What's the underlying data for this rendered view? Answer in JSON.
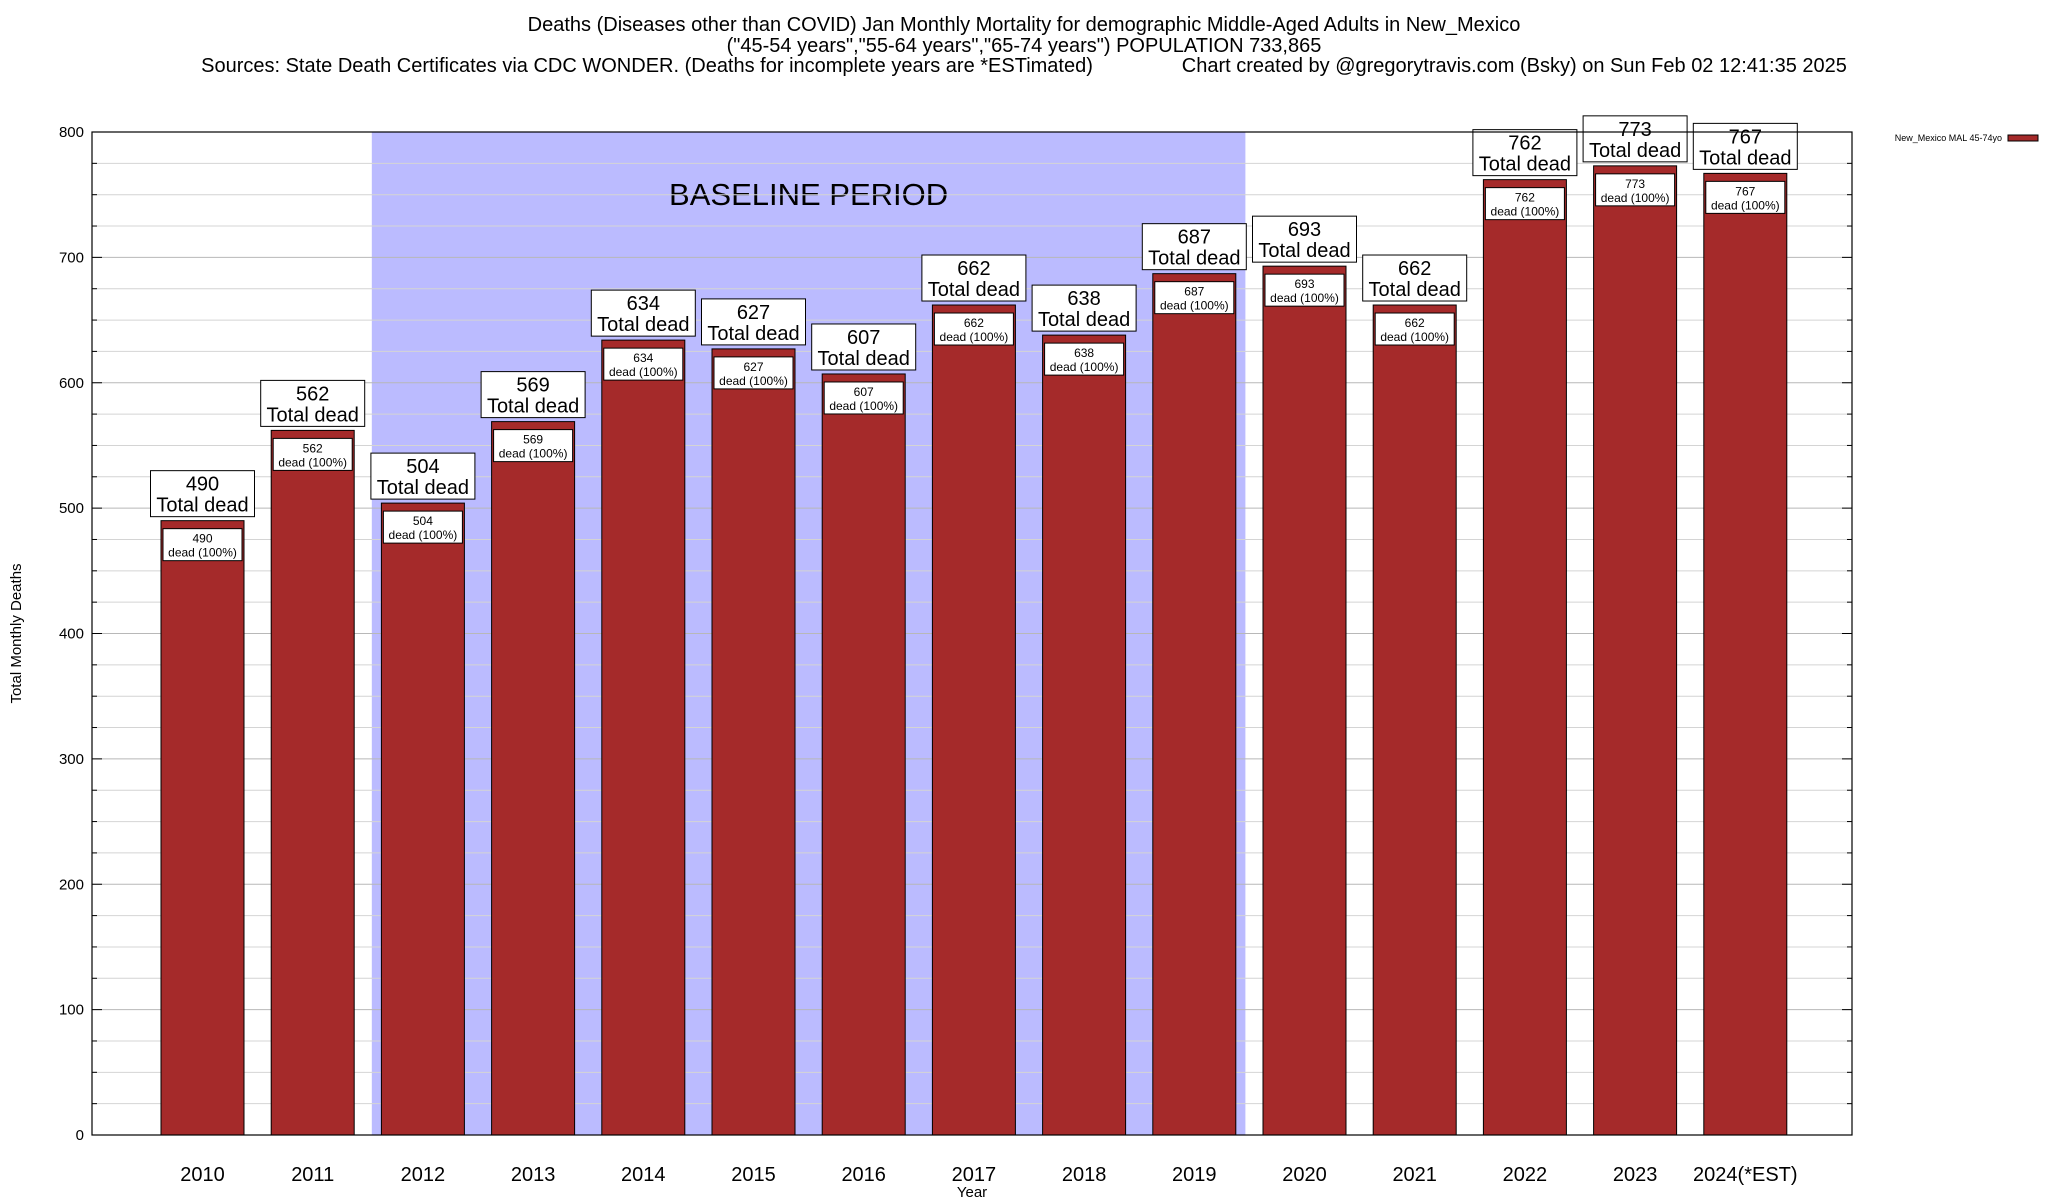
{
  "chart_data": {
    "type": "bar",
    "title_lines": [
      "Deaths (Diseases other than COVID) Jan Monthly Mortality for demographic Middle-Aged Adults in New_Mexico",
      "(\"45-54 years\",\"55-64 years\",\"65-74 years\") POPULATION 733,865",
      "Sources: State Death Certificates via CDC WONDER. (Deaths for incomplete years are *ESTimated)                Chart created by @gregorytravis.com (Bsky) on Sun Feb 02 12:41:35 2025"
    ],
    "xlabel": "Year",
    "ylabel": "Total Monthly Deaths",
    "ylim": [
      0,
      800
    ],
    "yticks": [
      0,
      100,
      200,
      300,
      400,
      500,
      600,
      700,
      800
    ],
    "categories": [
      "2010",
      "2011",
      "2012",
      "2013",
      "2014",
      "2015",
      "2016",
      "2017",
      "2018",
      "2019",
      "2020",
      "2021",
      "2022",
      "2023",
      "2024(*EST)"
    ],
    "series": [
      {
        "name": "New_Mexico MAL 45-74yo",
        "color": "#a52a2a",
        "values": [
          490,
          562,
          504,
          569,
          634,
          627,
          607,
          662,
          638,
          687,
          693,
          662,
          762,
          773,
          767
        ]
      }
    ],
    "total_label_word": "Total dead",
    "inner_label_suffix": "dead (100%)",
    "baseline": {
      "label": "BASELINE PERIOD",
      "start": "2012",
      "end": "2019",
      "color": "#bbbbff"
    },
    "legend_position": "top-right",
    "grid": true
  }
}
